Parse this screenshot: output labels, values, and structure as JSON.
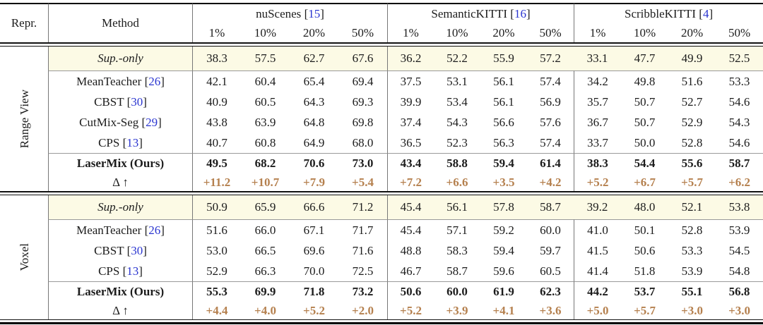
{
  "table": {
    "corner": {
      "repr": "Repr.",
      "method": "Method"
    },
    "groups": [
      {
        "slug": "nuscenes",
        "name": "nuScenes",
        "cite": "15",
        "cols": [
          "1%",
          "10%",
          "20%",
          "50%"
        ]
      },
      {
        "slug": "semantickitti",
        "name": "SemanticKITTI",
        "cite": "16",
        "cols": [
          "1%",
          "10%",
          "20%",
          "50%"
        ]
      },
      {
        "slug": "scribblekitti",
        "name": "ScribbleKITTI",
        "cite": "4",
        "cols": [
          "1%",
          "10%",
          "20%",
          "50%"
        ]
      }
    ],
    "sections": [
      {
        "slug": "range-view",
        "repr": "Range View",
        "baseline": {
          "label": "Sup.-only",
          "values": [
            "38.3",
            "57.5",
            "62.7",
            "67.6",
            "36.2",
            "52.2",
            "55.9",
            "57.2",
            "33.1",
            "47.7",
            "49.9",
            "52.5"
          ]
        },
        "methods": [
          {
            "label": "MeanTeacher",
            "cite": "26",
            "values": [
              "42.1",
              "60.4",
              "65.4",
              "69.4",
              "37.5",
              "53.1",
              "56.1",
              "57.4",
              "34.2",
              "49.8",
              "51.6",
              "53.3"
            ]
          },
          {
            "label": "CBST",
            "cite": "30",
            "values": [
              "40.9",
              "60.5",
              "64.3",
              "69.3",
              "39.9",
              "53.4",
              "56.1",
              "56.9",
              "35.7",
              "50.7",
              "52.7",
              "54.6"
            ]
          },
          {
            "label": "CutMix-Seg",
            "cite": "29",
            "values": [
              "43.8",
              "63.9",
              "64.8",
              "69.8",
              "37.4",
              "54.3",
              "56.6",
              "57.6",
              "36.7",
              "50.7",
              "52.9",
              "54.3"
            ]
          },
          {
            "label": "CPS",
            "cite": "13",
            "values": [
              "40.7",
              "60.8",
              "64.9",
              "68.0",
              "36.5",
              "52.3",
              "56.3",
              "57.4",
              "33.7",
              "50.0",
              "52.8",
              "54.6"
            ]
          }
        ],
        "ours": {
          "label": "LaserMix (Ours)",
          "values": [
            "49.5",
            "68.2",
            "70.6",
            "73.0",
            "43.4",
            "58.8",
            "59.4",
            "61.4",
            "38.3",
            "54.4",
            "55.6",
            "58.7"
          ]
        },
        "delta": {
          "label": "Δ ↑",
          "values": [
            "+11.2",
            "+10.7",
            "+7.9",
            "+5.4",
            "+7.2",
            "+6.6",
            "+3.5",
            "+4.2",
            "+5.2",
            "+6.7",
            "+5.7",
            "+6.2"
          ]
        }
      },
      {
        "slug": "voxel",
        "repr": "Voxel",
        "baseline": {
          "label": "Sup.-only",
          "values": [
            "50.9",
            "65.9",
            "66.6",
            "71.2",
            "45.4",
            "56.1",
            "57.8",
            "58.7",
            "39.2",
            "48.0",
            "52.1",
            "53.8"
          ]
        },
        "methods": [
          {
            "label": "MeanTeacher",
            "cite": "26",
            "values": [
              "51.6",
              "66.0",
              "67.1",
              "71.7",
              "45.4",
              "57.1",
              "59.2",
              "60.0",
              "41.0",
              "50.1",
              "52.8",
              "53.9"
            ]
          },
          {
            "label": "CBST",
            "cite": "30",
            "values": [
              "53.0",
              "66.5",
              "69.6",
              "71.6",
              "48.8",
              "58.3",
              "59.4",
              "59.7",
              "41.5",
              "50.6",
              "53.3",
              "54.5"
            ]
          },
          {
            "label": "CPS",
            "cite": "13",
            "values": [
              "52.9",
              "66.3",
              "70.0",
              "72.5",
              "46.7",
              "58.7",
              "59.6",
              "60.5",
              "41.4",
              "51.8",
              "53.9",
              "54.8"
            ]
          }
        ],
        "ours": {
          "label": "LaserMix (Ours)",
          "values": [
            "55.3",
            "69.9",
            "71.8",
            "73.2",
            "50.6",
            "60.0",
            "61.9",
            "62.3",
            "44.2",
            "53.7",
            "55.1",
            "56.8"
          ]
        },
        "delta": {
          "label": "Δ ↑",
          "values": [
            "+4.4",
            "+4.0",
            "+5.2",
            "+2.0",
            "+5.2",
            "+3.9",
            "+4.1",
            "+3.6",
            "+5.0",
            "+5.7",
            "+3.0",
            "+3.0"
          ]
        }
      }
    ],
    "colors": {
      "baseline_row_bg": "#FCFAE5",
      "citation_blue": "#2B36D0",
      "delta_brown": "#B5804E",
      "rule_gray": "#999999",
      "line_black": "#000000"
    }
  }
}
